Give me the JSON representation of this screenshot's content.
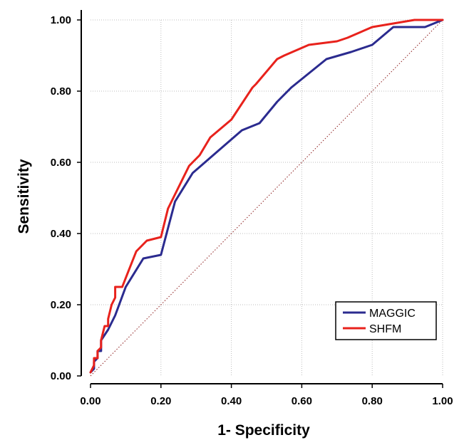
{
  "chart_data": {
    "type": "line",
    "xlabel": "1- Specificity",
    "ylabel": "Sensitivity",
    "xlim": [
      0,
      1
    ],
    "ylim": [
      0,
      1
    ],
    "grid": true,
    "legend_position": "bottom-right",
    "x_ticks": [
      "0.00",
      "0.20",
      "0.40",
      "0.60",
      "0.80",
      "1.00"
    ],
    "y_ticks": [
      "0.00",
      "0.20",
      "0.40",
      "0.60",
      "0.80",
      "1.00"
    ],
    "series": [
      {
        "name": "MAGGIC",
        "color": "#2b2b8f",
        "x": [
          0.0,
          0.01,
          0.01,
          0.02,
          0.02,
          0.03,
          0.03,
          0.05,
          0.07,
          0.1,
          0.15,
          0.2,
          0.24,
          0.29,
          0.36,
          0.43,
          0.48,
          0.53,
          0.57,
          0.62,
          0.67,
          0.74,
          0.8,
          0.86,
          0.95,
          1.0
        ],
        "y": [
          0.01,
          0.02,
          0.04,
          0.05,
          0.07,
          0.07,
          0.1,
          0.13,
          0.17,
          0.25,
          0.33,
          0.34,
          0.49,
          0.57,
          0.63,
          0.69,
          0.71,
          0.77,
          0.81,
          0.85,
          0.89,
          0.91,
          0.93,
          0.98,
          0.98,
          1.0
        ]
      },
      {
        "name": "SHFM",
        "color": "#e8221c",
        "x": [
          0.0,
          0.01,
          0.01,
          0.02,
          0.02,
          0.03,
          0.03,
          0.04,
          0.05,
          0.05,
          0.06,
          0.07,
          0.07,
          0.09,
          0.11,
          0.13,
          0.16,
          0.2,
          0.22,
          0.25,
          0.28,
          0.31,
          0.34,
          0.4,
          0.46,
          0.47,
          0.53,
          0.55,
          0.62,
          0.7,
          0.73,
          0.8,
          0.86,
          0.92,
          1.0
        ],
        "y": [
          0.01,
          0.03,
          0.05,
          0.05,
          0.07,
          0.08,
          0.1,
          0.14,
          0.14,
          0.16,
          0.2,
          0.22,
          0.25,
          0.25,
          0.3,
          0.35,
          0.38,
          0.39,
          0.47,
          0.53,
          0.59,
          0.62,
          0.67,
          0.72,
          0.81,
          0.82,
          0.89,
          0.9,
          0.93,
          0.94,
          0.95,
          0.98,
          0.99,
          1.0,
          1.0
        ]
      }
    ],
    "reference_line": {
      "x": [
        0,
        1
      ],
      "y": [
        0,
        1
      ],
      "style": "dotted",
      "color": "#8b1a1a"
    }
  }
}
